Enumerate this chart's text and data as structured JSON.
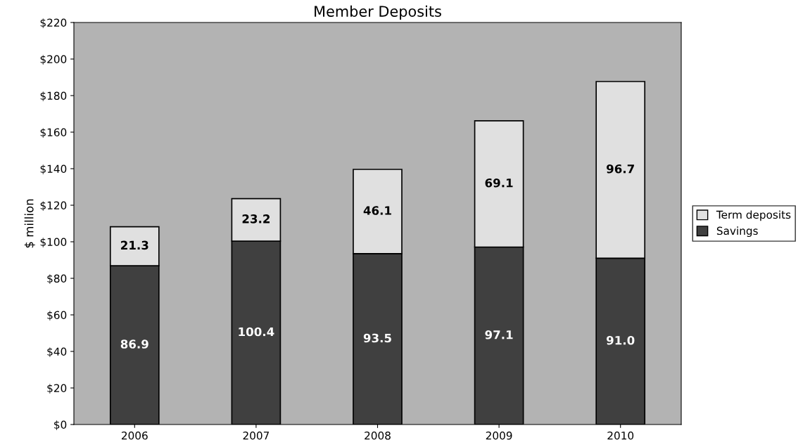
{
  "chart_data": {
    "type": "bar",
    "title": "Member Deposits",
    "ylabel": "$ million",
    "categories": [
      "2006",
      "2007",
      "2008",
      "2009",
      "2010"
    ],
    "stacked": true,
    "series": [
      {
        "name": "Savings",
        "color": "#404040",
        "values": [
          86.9,
          100.4,
          93.5,
          97.1,
          91.0
        ],
        "value_labels": [
          "86.9",
          "100.4",
          "93.5",
          "97.1",
          "91.0"
        ]
      },
      {
        "name": "Term deposits",
        "color": "#e0e0e0",
        "values": [
          21.3,
          23.2,
          46.1,
          69.1,
          96.7
        ],
        "value_labels": [
          "21.3",
          "23.2",
          "46.1",
          "69.1",
          "96.7"
        ]
      }
    ],
    "ylim": [
      0,
      220
    ],
    "yticks": [
      {
        "value": 0,
        "label": "$0"
      },
      {
        "value": 20,
        "label": "$20"
      },
      {
        "value": 40,
        "label": "$40"
      },
      {
        "value": 60,
        "label": "$60"
      },
      {
        "value": 80,
        "label": "$80"
      },
      {
        "value": 100,
        "label": "$100"
      },
      {
        "value": 120,
        "label": "$120"
      },
      {
        "value": 140,
        "label": "$140"
      },
      {
        "value": 160,
        "label": "$160"
      },
      {
        "value": 180,
        "label": "$180"
      },
      {
        "value": 200,
        "label": "$200"
      },
      {
        "value": 220,
        "label": "$220"
      }
    ],
    "grid": false,
    "legend": "right"
  }
}
